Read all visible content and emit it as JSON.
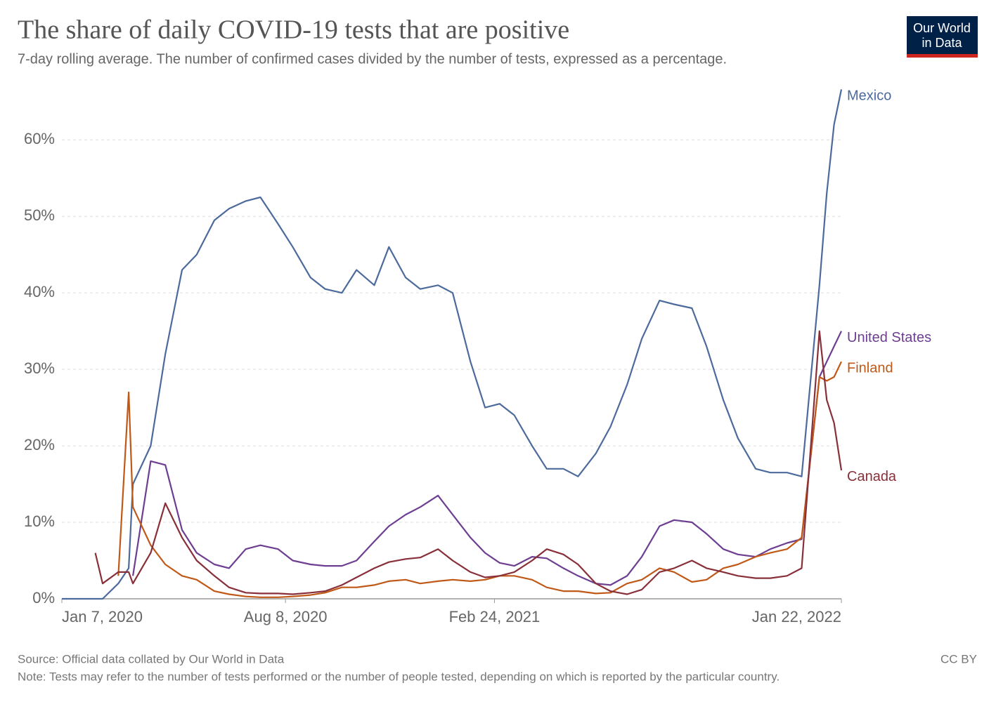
{
  "chart_data": {
    "type": "line",
    "title": "The share of daily COVID-19 tests that are positive",
    "subtitle": "7-day rolling average. The number of confirmed cases divided by the number of tests, expressed as a percentage.",
    "source": "Source: Official data collated by Our World in Data",
    "note": "Note: Tests may refer to the number of tests performed or the number of people tested, depending on which is reported by the particular country.",
    "license": "CC BY",
    "logo": [
      "Our World",
      "in Data"
    ],
    "x": [
      "2020-01-07",
      "2020-02-01",
      "2020-02-08",
      "2020-02-15",
      "2020-03-01",
      "2020-03-11",
      "2020-03-15",
      "2020-04-01",
      "2020-04-15",
      "2020-05-01",
      "2020-05-15",
      "2020-06-01",
      "2020-06-15",
      "2020-07-01",
      "2020-07-15",
      "2020-08-01",
      "2020-08-15",
      "2020-09-01",
      "2020-09-15",
      "2020-10-01",
      "2020-10-15",
      "2020-11-01",
      "2020-11-15",
      "2020-12-01",
      "2020-12-15",
      "2021-01-01",
      "2021-01-15",
      "2021-02-01",
      "2021-02-15",
      "2021-03-01",
      "2021-03-15",
      "2021-04-01",
      "2021-04-15",
      "2021-05-01",
      "2021-05-15",
      "2021-06-01",
      "2021-06-15",
      "2021-07-01",
      "2021-07-15",
      "2021-08-01",
      "2021-08-15",
      "2021-09-01",
      "2021-09-15",
      "2021-10-01",
      "2021-10-15",
      "2021-11-01",
      "2021-11-15",
      "2021-12-01",
      "2021-12-15",
      "2022-01-01",
      "2022-01-08",
      "2022-01-15",
      "2022-01-22"
    ],
    "series": [
      {
        "name": "Mexico",
        "color": "#4c6a9c",
        "values": [
          0,
          0,
          0,
          0,
          2,
          4,
          15,
          20,
          32,
          43,
          45,
          49.5,
          51,
          52,
          52.5,
          49,
          46,
          42,
          40.5,
          40,
          43,
          41,
          46,
          42,
          40.5,
          41,
          40,
          31,
          25,
          25.5,
          24,
          20,
          17,
          17,
          16,
          19,
          22.5,
          28,
          34,
          39,
          38.5,
          38,
          33,
          26,
          21,
          17,
          16.5,
          16.5,
          16,
          41,
          53,
          62,
          66.6
        ]
      },
      {
        "name": "United States",
        "color": "#6d3e91",
        "values": [
          null,
          null,
          null,
          null,
          null,
          null,
          3,
          18,
          17.5,
          9,
          6,
          4.5,
          4,
          6.5,
          7,
          6.5,
          5,
          4.5,
          4.3,
          4.3,
          5,
          7.5,
          9.5,
          11,
          12,
          13.5,
          11,
          8,
          6,
          4.7,
          4.3,
          5.5,
          5.3,
          4,
          3,
          2,
          1.8,
          3,
          5.5,
          9.5,
          10.3,
          10,
          8.5,
          6.5,
          5.8,
          5.5,
          6.5,
          7.3,
          7.8,
          29,
          31,
          33,
          35
        ]
      },
      {
        "name": "Finland",
        "color": "#c05917",
        "values": [
          null,
          null,
          null,
          null,
          3,
          27,
          12,
          7,
          4.5,
          3,
          2.5,
          1,
          0.6,
          0.3,
          0.2,
          0.2,
          0.3,
          0.5,
          0.8,
          1.5,
          1.5,
          1.8,
          2.3,
          2.5,
          2,
          2.3,
          2.5,
          2.3,
          2.5,
          3,
          3,
          2.5,
          1.5,
          1,
          1,
          0.7,
          0.8,
          2,
          2.5,
          4,
          3.5,
          2.2,
          2.5,
          4,
          4.5,
          5.5,
          6,
          6.5,
          8,
          29,
          28.5,
          29,
          31
        ]
      },
      {
        "name": "Canada",
        "color": "#883039",
        "values": [
          null,
          null,
          6,
          2,
          3.5,
          3.5,
          2,
          6,
          12.5,
          8,
          5,
          3,
          1.5,
          0.8,
          0.7,
          0.7,
          0.6,
          0.8,
          1,
          1.8,
          2.8,
          4,
          4.8,
          5.2,
          5.4,
          6.5,
          5,
          3.5,
          2.8,
          3,
          3.5,
          5,
          6.5,
          5.8,
          4.5,
          2,
          1,
          0.6,
          1.2,
          3.5,
          4,
          5,
          4,
          3.5,
          3,
          2.7,
          2.7,
          3,
          4,
          35,
          26,
          23,
          16.8
        ]
      }
    ],
    "xlim": [
      "2020-01-07",
      "2022-01-22"
    ],
    "xticks": [
      {
        "value": "2020-01-07",
        "label": "Jan 7, 2020"
      },
      {
        "value": "2020-08-08",
        "label": "Aug 8, 2020"
      },
      {
        "value": "2021-02-24",
        "label": "Feb 24, 2021"
      },
      {
        "value": "2022-01-22",
        "label": "Jan 22, 2022"
      }
    ],
    "ylim": [
      0,
      67
    ],
    "yticks": [
      {
        "value": 0,
        "label": "0%"
      },
      {
        "value": 10,
        "label": "10%"
      },
      {
        "value": 20,
        "label": "20%"
      },
      {
        "value": 30,
        "label": "30%"
      },
      {
        "value": 40,
        "label": "40%"
      },
      {
        "value": 50,
        "label": "50%"
      },
      {
        "value": 60,
        "label": "60%"
      }
    ],
    "grid": true
  }
}
